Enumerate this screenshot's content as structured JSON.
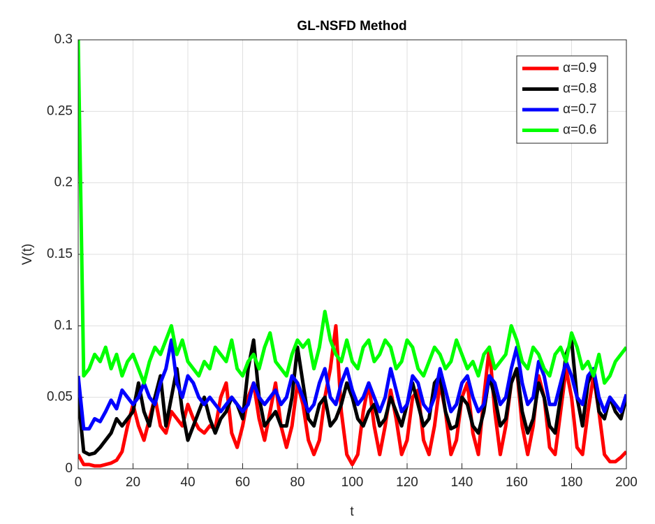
{
  "chart_data": {
    "type": "line",
    "title": "GL-NSFD Method",
    "x_label": "t",
    "y_label": "V(t)",
    "x": [
      0,
      2,
      4,
      6,
      8,
      10,
      12,
      14,
      16,
      18,
      20,
      22,
      24,
      26,
      28,
      30,
      32,
      34,
      36,
      38,
      40,
      42,
      44,
      46,
      48,
      50,
      52,
      54,
      56,
      58,
      60,
      62,
      64,
      66,
      68,
      70,
      72,
      74,
      76,
      78,
      80,
      82,
      84,
      86,
      88,
      90,
      92,
      94,
      96,
      98,
      100,
      102,
      104,
      106,
      108,
      110,
      112,
      114,
      116,
      118,
      120,
      122,
      124,
      126,
      128,
      130,
      132,
      134,
      136,
      138,
      140,
      142,
      144,
      146,
      148,
      150,
      152,
      154,
      156,
      158,
      160,
      162,
      164,
      166,
      168,
      170,
      172,
      174,
      176,
      178,
      180,
      182,
      184,
      186,
      188,
      190,
      192,
      194,
      196,
      198,
      200
    ],
    "series": [
      {
        "name": "α=0.9",
        "color": "#ff0000",
        "values": [
          0.01,
          0.003,
          0.003,
          0.002,
          0.002,
          0.003,
          0.004,
          0.006,
          0.012,
          0.03,
          0.045,
          0.03,
          0.02,
          0.035,
          0.05,
          0.03,
          0.025,
          0.04,
          0.035,
          0.03,
          0.045,
          0.035,
          0.028,
          0.025,
          0.03,
          0.028,
          0.05,
          0.06,
          0.025,
          0.015,
          0.03,
          0.05,
          0.06,
          0.035,
          0.02,
          0.04,
          0.06,
          0.03,
          0.015,
          0.03,
          0.06,
          0.045,
          0.02,
          0.01,
          0.02,
          0.05,
          0.07,
          0.1,
          0.04,
          0.01,
          0.003,
          0.01,
          0.04,
          0.06,
          0.03,
          0.01,
          0.03,
          0.055,
          0.035,
          0.01,
          0.02,
          0.05,
          0.055,
          0.02,
          0.01,
          0.03,
          0.06,
          0.04,
          0.01,
          0.02,
          0.05,
          0.06,
          0.025,
          0.01,
          0.05,
          0.085,
          0.04,
          0.01,
          0.03,
          0.06,
          0.07,
          0.03,
          0.01,
          0.03,
          0.065,
          0.05,
          0.015,
          0.01,
          0.04,
          0.07,
          0.05,
          0.015,
          0.01,
          0.04,
          0.065,
          0.04,
          0.01,
          0.005,
          0.005,
          0.008,
          0.012
        ]
      },
      {
        "name": "α=0.8",
        "color": "#000000",
        "values": [
          0.05,
          0.012,
          0.01,
          0.011,
          0.015,
          0.02,
          0.025,
          0.035,
          0.03,
          0.035,
          0.04,
          0.06,
          0.04,
          0.03,
          0.05,
          0.065,
          0.03,
          0.05,
          0.07,
          0.04,
          0.02,
          0.03,
          0.04,
          0.05,
          0.035,
          0.025,
          0.035,
          0.04,
          0.05,
          0.045,
          0.035,
          0.07,
          0.09,
          0.05,
          0.03,
          0.035,
          0.04,
          0.03,
          0.03,
          0.05,
          0.085,
          0.06,
          0.035,
          0.03,
          0.045,
          0.05,
          0.03,
          0.035,
          0.045,
          0.06,
          0.05,
          0.035,
          0.03,
          0.04,
          0.045,
          0.03,
          0.035,
          0.05,
          0.04,
          0.03,
          0.045,
          0.06,
          0.045,
          0.03,
          0.035,
          0.06,
          0.065,
          0.04,
          0.028,
          0.03,
          0.05,
          0.045,
          0.03,
          0.025,
          0.04,
          0.065,
          0.05,
          0.03,
          0.035,
          0.06,
          0.07,
          0.04,
          0.025,
          0.035,
          0.06,
          0.05,
          0.03,
          0.025,
          0.05,
          0.08,
          0.09,
          0.05,
          0.03,
          0.06,
          0.07,
          0.04,
          0.035,
          0.05,
          0.04,
          0.035,
          0.05
        ]
      },
      {
        "name": "α=0.7",
        "color": "#0000ff",
        "values": [
          0.065,
          0.028,
          0.028,
          0.035,
          0.033,
          0.04,
          0.048,
          0.042,
          0.055,
          0.05,
          0.045,
          0.05,
          0.06,
          0.05,
          0.045,
          0.06,
          0.07,
          0.09,
          0.06,
          0.05,
          0.065,
          0.06,
          0.05,
          0.045,
          0.05,
          0.045,
          0.04,
          0.045,
          0.05,
          0.045,
          0.04,
          0.045,
          0.06,
          0.05,
          0.045,
          0.05,
          0.055,
          0.045,
          0.05,
          0.065,
          0.06,
          0.05,
          0.04,
          0.045,
          0.06,
          0.07,
          0.05,
          0.045,
          0.06,
          0.07,
          0.055,
          0.045,
          0.05,
          0.06,
          0.05,
          0.04,
          0.05,
          0.07,
          0.055,
          0.04,
          0.045,
          0.065,
          0.06,
          0.045,
          0.04,
          0.05,
          0.07,
          0.055,
          0.04,
          0.045,
          0.06,
          0.065,
          0.05,
          0.04,
          0.045,
          0.065,
          0.06,
          0.045,
          0.05,
          0.07,
          0.085,
          0.06,
          0.045,
          0.05,
          0.075,
          0.065,
          0.045,
          0.045,
          0.06,
          0.075,
          0.065,
          0.05,
          0.045,
          0.065,
          0.07,
          0.05,
          0.04,
          0.05,
          0.045,
          0.04,
          0.052
        ]
      },
      {
        "name": "α=0.6",
        "color": "#00ff00",
        "values": [
          0.3,
          0.065,
          0.07,
          0.08,
          0.075,
          0.085,
          0.07,
          0.08,
          0.065,
          0.075,
          0.08,
          0.07,
          0.06,
          0.075,
          0.085,
          0.08,
          0.09,
          0.1,
          0.08,
          0.09,
          0.075,
          0.07,
          0.065,
          0.075,
          0.07,
          0.085,
          0.08,
          0.075,
          0.09,
          0.07,
          0.065,
          0.075,
          0.08,
          0.07,
          0.085,
          0.095,
          0.075,
          0.07,
          0.065,
          0.08,
          0.09,
          0.085,
          0.09,
          0.07,
          0.085,
          0.11,
          0.09,
          0.08,
          0.075,
          0.09,
          0.075,
          0.07,
          0.085,
          0.09,
          0.075,
          0.08,
          0.09,
          0.085,
          0.07,
          0.075,
          0.09,
          0.085,
          0.07,
          0.065,
          0.075,
          0.085,
          0.08,
          0.07,
          0.075,
          0.09,
          0.08,
          0.07,
          0.075,
          0.065,
          0.08,
          0.085,
          0.07,
          0.075,
          0.08,
          0.1,
          0.09,
          0.075,
          0.07,
          0.085,
          0.08,
          0.07,
          0.065,
          0.08,
          0.085,
          0.075,
          0.095,
          0.085,
          0.07,
          0.075,
          0.065,
          0.08,
          0.06,
          0.065,
          0.075,
          0.08,
          0.085
        ]
      }
    ],
    "xlim": [
      0,
      200
    ],
    "xticks": [
      0,
      20,
      40,
      60,
      80,
      100,
      120,
      140,
      160,
      180,
      200
    ],
    "ylim": [
      0,
      0.3
    ],
    "yticks": [
      0,
      0.05,
      0.1,
      0.15,
      0.2,
      0.25,
      0.3
    ],
    "grid": true,
    "legend_position": "upper right"
  }
}
